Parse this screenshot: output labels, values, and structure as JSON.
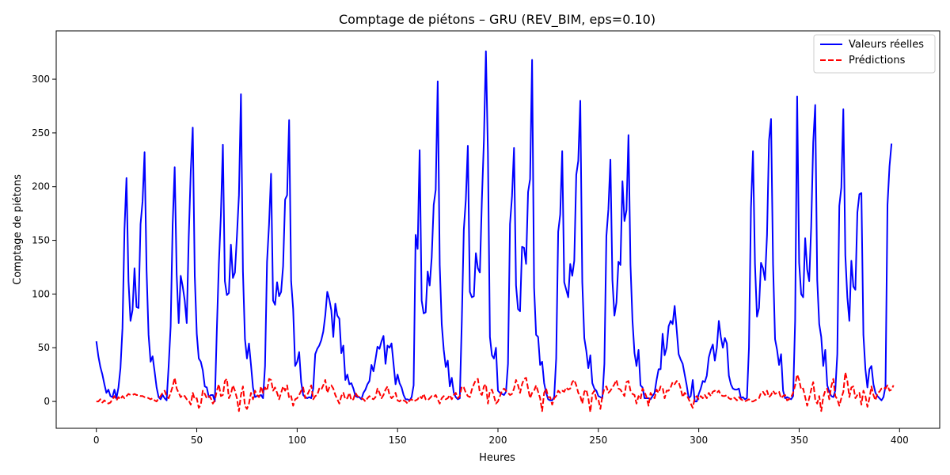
{
  "chart_data": {
    "type": "line",
    "title": "Comptage de piétons – GRU (REV_BIM, eps=0.10)",
    "xlabel": "Heures",
    "ylabel": "Comptage de piétons",
    "xlim": [
      -20,
      420
    ],
    "ylim": [
      -25,
      345
    ],
    "xticks": [
      0,
      50,
      100,
      150,
      200,
      250,
      300,
      350,
      400
    ],
    "yticks": [
      0,
      50,
      100,
      150,
      200,
      250,
      300
    ],
    "grid": false,
    "legend_position": "top-right",
    "series": [
      {
        "name": "Valeurs réelles",
        "color": "#0000ff",
        "style": "solid",
        "values": [
          56,
          42,
          32,
          25,
          16,
          8,
          11,
          5,
          4,
          11,
          3,
          13,
          31,
          68,
          160,
          208,
          112,
          75,
          85,
          124,
          88,
          87,
          165,
          186,
          232,
          122,
          62,
          37,
          42,
          28,
          13,
          4,
          2,
          6,
          3,
          1,
          33,
          70,
          165,
          218,
          118,
          73,
          117,
          107,
          94,
          73,
          153,
          214,
          255,
          117,
          63,
          40,
          37,
          29,
          14,
          13,
          4,
          6,
          6,
          0,
          67,
          128,
          173,
          239,
          112,
          99,
          101,
          146,
          115,
          120,
          154,
          192,
          286,
          121,
          58,
          40,
          54,
          34,
          13,
          4,
          5,
          5,
          6,
          3,
          33,
          130,
          165,
          212,
          94,
          90,
          111,
          98,
          102,
          126,
          188,
          192,
          262,
          112,
          86,
          33,
          37,
          46,
          18,
          6,
          4,
          3,
          4,
          3,
          12,
          44,
          49,
          52,
          57,
          65,
          80,
          102,
          95,
          85,
          60,
          91,
          80,
          77,
          45,
          52,
          20,
          25,
          16,
          17,
          12,
          5,
          4,
          4,
          2,
          8,
          11,
          16,
          19,
          34,
          28,
          39,
          51,
          49,
          56,
          61,
          35,
          52,
          50,
          54,
          35,
          16,
          25,
          17,
          13,
          6,
          2,
          2,
          1,
          4,
          15,
          155,
          142,
          234,
          94,
          82,
          83,
          121,
          108,
          134,
          183,
          197,
          298,
          127,
          72,
          48,
          32,
          38,
          14,
          22,
          8,
          4,
          2,
          3,
          75,
          160,
          188,
          238,
          102,
          97,
          98,
          138,
          124,
          120,
          188,
          243,
          326,
          232,
          60,
          43,
          40,
          50,
          10,
          8,
          7,
          6,
          9,
          35,
          165,
          191,
          236,
          108,
          86,
          84,
          144,
          143,
          128,
          195,
          207,
          318,
          106,
          62,
          60,
          34,
          37,
          17,
          8,
          2,
          1,
          1,
          4,
          40,
          158,
          174,
          233,
          111,
          104,
          97,
          128,
          117,
          131,
          211,
          224,
          280,
          111,
          59,
          47,
          31,
          43,
          17,
          12,
          10,
          5,
          4,
          3,
          35,
          154,
          179,
          225,
          113,
          80,
          92,
          130,
          127,
          205,
          168,
          178,
          248,
          127,
          75,
          45,
          33,
          48,
          15,
          13,
          3,
          3,
          3,
          2,
          5,
          8,
          20,
          30,
          30,
          63,
          43,
          50,
          70,
          75,
          72,
          89,
          67,
          44,
          39,
          35,
          25,
          15,
          3,
          5,
          20,
          0,
          0,
          7,
          12,
          19,
          18,
          24,
          41,
          48,
          53,
          38,
          50,
          75,
          60,
          50,
          59,
          54,
          24,
          16,
          12,
          11,
          11,
          12,
          3,
          4,
          2,
          3,
          50,
          180,
          233,
          128,
          79,
          87,
          129,
          124,
          113,
          155,
          243,
          263,
          128,
          58,
          48,
          34,
          44,
          10,
          3,
          4,
          3,
          2,
          5,
          75,
          284,
          129,
          100,
          97,
          152,
          123,
          112,
          163,
          241,
          276,
          113,
          72,
          60,
          33,
          48,
          15,
          9,
          5,
          4,
          10,
          44,
          182,
          199,
          272,
          136,
          97,
          75,
          131,
          107,
          104,
          176,
          193,
          194,
          62,
          30,
          13,
          30,
          33,
          16,
          8,
          5,
          3,
          1,
          4,
          14,
          183,
          219,
          240
        ]
      },
      {
        "name": "Prédictions",
        "color": "#ff0000",
        "style": "dashed",
        "values": [
          0,
          0,
          2,
          -1,
          1,
          -1,
          -2,
          -1,
          2,
          5,
          1,
          4,
          2,
          5,
          3,
          5,
          7,
          6,
          6,
          7,
          6,
          6,
          5,
          5,
          4,
          4,
          3,
          2,
          3,
          1,
          0,
          3,
          5,
          8,
          10,
          5,
          3,
          8,
          14,
          22,
          12,
          8,
          4,
          6,
          5,
          2,
          1,
          -3,
          8,
          2,
          3,
          -6,
          -3,
          10,
          7,
          3,
          5,
          3,
          -2,
          1,
          10,
          16,
          5,
          6,
          19,
          21,
          3,
          7,
          15,
          10,
          3,
          -9,
          6,
          14,
          -4,
          -7,
          -2,
          8,
          2,
          10,
          6,
          4,
          14,
          8,
          13,
          10,
          21,
          20,
          10,
          13,
          8,
          2,
          8,
          14,
          10,
          15,
          3,
          5,
          -4,
          2,
          3,
          6,
          10,
          13,
          3,
          6,
          10,
          15,
          2,
          5,
          6,
          12,
          11,
          15,
          20,
          8,
          13,
          15,
          12,
          6,
          2,
          -2,
          5,
          8,
          2,
          3,
          8,
          1,
          2,
          8,
          5,
          4,
          3,
          2,
          0,
          3,
          5,
          3,
          2,
          4,
          12,
          8,
          3,
          6,
          11,
          14,
          6,
          3,
          5,
          8,
          1,
          0,
          2,
          1,
          0,
          -2,
          1,
          2,
          0,
          1,
          2,
          5,
          3,
          7,
          2,
          1,
          3,
          5,
          4,
          6,
          2,
          -2,
          3,
          5,
          2,
          3,
          6,
          2,
          6,
          8,
          3,
          5,
          14,
          13,
          8,
          5,
          4,
          11,
          16,
          20,
          21,
          8,
          6,
          14,
          16,
          -2,
          10,
          11,
          5,
          -2,
          0,
          5,
          10,
          12,
          10,
          8,
          6,
          7,
          12,
          20,
          15,
          8,
          16,
          21,
          22,
          12,
          3,
          8,
          10,
          15,
          9,
          3,
          -9,
          8,
          12,
          4,
          4,
          -3,
          3,
          5,
          10,
          8,
          10,
          9,
          13,
          11,
          12,
          18,
          20,
          15,
          8,
          5,
          -2,
          9,
          11,
          3,
          -10,
          7,
          10,
          2,
          2,
          -7,
          5,
          12,
          14,
          8,
          10,
          13,
          16,
          20,
          12,
          11,
          8,
          5,
          18,
          19,
          10,
          7,
          6,
          -2,
          5,
          2,
          12,
          9,
          4,
          -4,
          8,
          5,
          3,
          11,
          8,
          14,
          13,
          3,
          10,
          10,
          13,
          18,
          16,
          19,
          18,
          12,
          4,
          8,
          6,
          2,
          -2,
          -6,
          3,
          5,
          2,
          5,
          3,
          6,
          3,
          8,
          5,
          9,
          10,
          8,
          10,
          6,
          5,
          5,
          6,
          3,
          2,
          4,
          3,
          1,
          4,
          2,
          1,
          0,
          1,
          2,
          0,
          0,
          1,
          2,
          3,
          8,
          9,
          6,
          10,
          4,
          6,
          10,
          7,
          8,
          9,
          3,
          5,
          6,
          1,
          2,
          4,
          8,
          15,
          25,
          20,
          11,
          12,
          4,
          -4,
          3,
          11,
          18,
          2,
          -2,
          5,
          -9,
          4,
          10,
          12,
          2,
          14,
          21,
          5,
          2,
          -4,
          3,
          9,
          27,
          19,
          4,
          13,
          14,
          3,
          6,
          8,
          -3,
          10,
          5,
          -5,
          3,
          14,
          6,
          1,
          8,
          9,
          12,
          13,
          12,
          15,
          10,
          11,
          15
        ]
      }
    ]
  }
}
